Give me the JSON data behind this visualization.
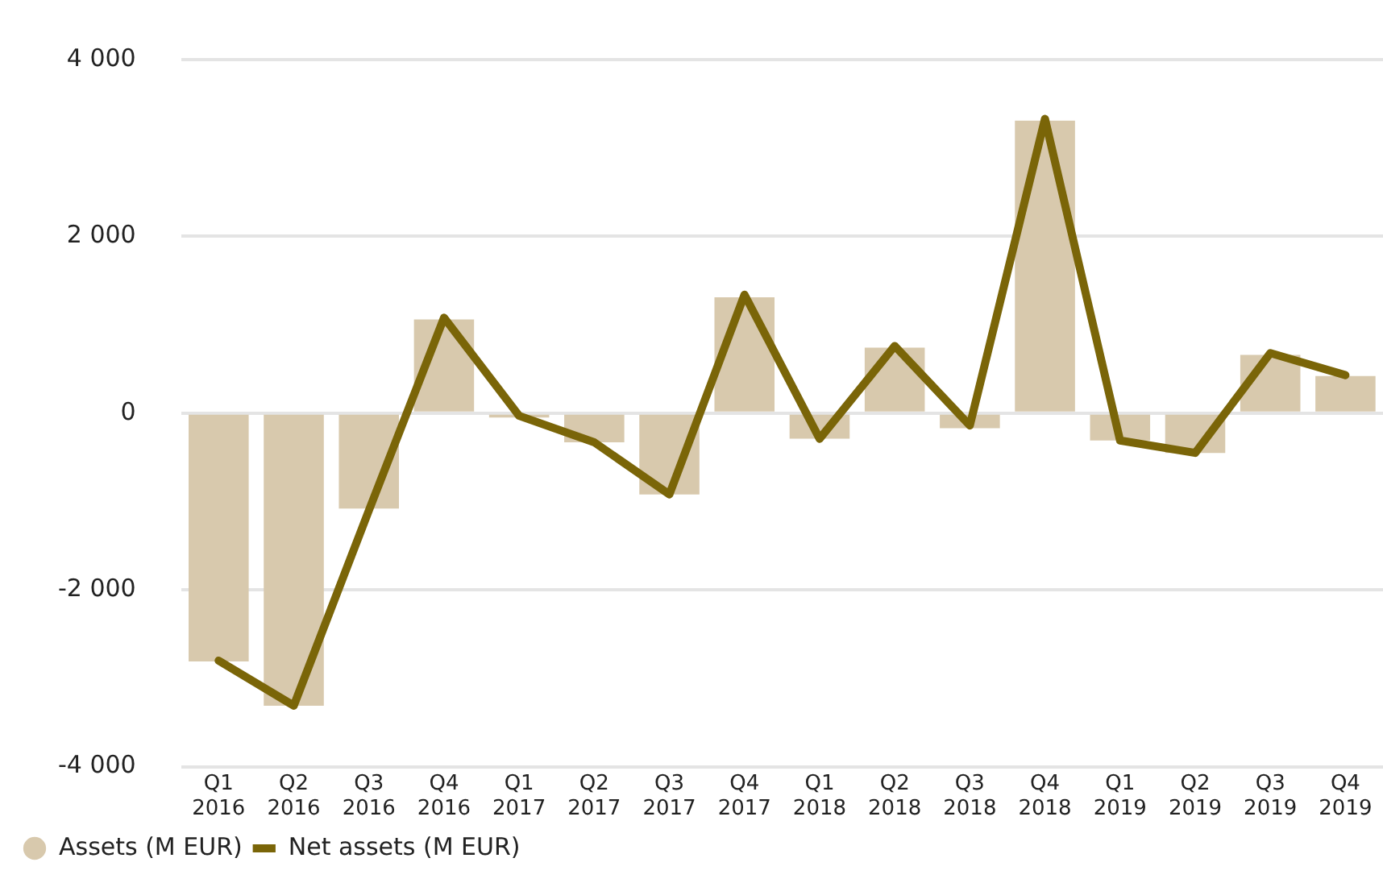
{
  "chart_data": {
    "type": "bar",
    "categories": [
      "Q1 2016",
      "Q2 2016",
      "Q3 2016",
      "Q4 2016",
      "Q1 2017",
      "Q2 2017",
      "Q3 2017",
      "Q4 2017",
      "Q1 2018",
      "Q2 2018",
      "Q3 2018",
      "Q4 2018",
      "Q1 2019",
      "Q2 2019",
      "Q3 2019",
      "Q4 2019"
    ],
    "series": [
      {
        "name": "Assets (M EUR)",
        "color": "#d8c9ad",
        "values": [
          -2810,
          -3310,
          -1080,
          1060,
          -50,
          -330,
          -920,
          1310,
          -290,
          740,
          -170,
          3310,
          -310,
          -450,
          660,
          420
        ]
      },
      {
        "name": "Net assets (M EUR)",
        "type": "line",
        "color": "#7a6508",
        "values": [
          -2800,
          -3310,
          -1100,
          1080,
          -30,
          -330,
          -920,
          1340,
          -290,
          760,
          -140,
          3330,
          -310,
          -450,
          680,
          430
        ]
      }
    ],
    "ylim": [
      -4000,
      4000
    ],
    "yticks": [
      {
        "value": -4000,
        "label": "-4 000"
      },
      {
        "value": -2000,
        "label": "-2 000"
      },
      0,
      {
        "value": 2000,
        "label": "2 000"
      },
      {
        "value": 4000,
        "label": "4 000"
      }
    ],
    "grid": "y",
    "legend": "bottom left",
    "marker": "none"
  }
}
